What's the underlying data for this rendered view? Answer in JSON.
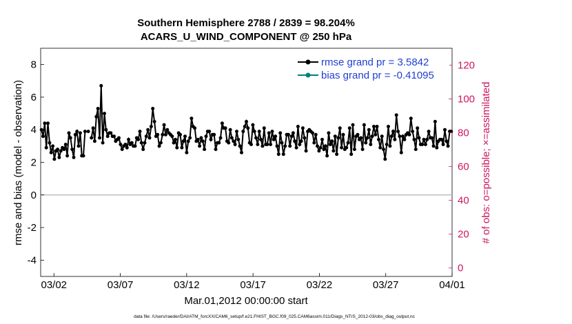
{
  "chart_data": {
    "type": "line",
    "title_line1": "Southern Hemisphere 2788 / 2839 = 98.204%",
    "title_line2": "ACARS_U_WIND_COMPONENT @ 250 hPa",
    "xlabel": "Mar.01,2012 00:00:00 start",
    "ylabel_left": "rmse and bias (model - observation)",
    "ylabel_right": "# of obs: o=possible; ×=assimilated",
    "footer": "data file: /Users/raeder/DAI/ATM_forcXX/CAM6_setup/f.e21.FHIST_BGC.f09_025.CAM6assim.011/Diags_NTrS_2012-03/obs_diag_output.nc",
    "x_tick_labels": [
      "03/02",
      "03/07",
      "03/12",
      "03/17",
      "03/22",
      "03/27",
      "04/01"
    ],
    "x_tick_positions": [
      1,
      6,
      11,
      16,
      21,
      26,
      31
    ],
    "xlim": [
      0,
      31
    ],
    "left_ylim": [
      -5,
      9
    ],
    "left_ticks": [
      "-4",
      "-2",
      "0",
      "2",
      "4",
      "6",
      "8"
    ],
    "right_ylim": [
      -5,
      130
    ],
    "right_ticks": [
      "0",
      "20",
      "40",
      "60",
      "80",
      "100",
      "120"
    ],
    "colors": {
      "rmse": "#000000",
      "bias": "#00807f",
      "obs": "#cc1561",
      "zero": "#bdbdbd",
      "legend_text": "#1f3fd0"
    },
    "legend": [
      {
        "name": "rmse",
        "label": "rmse grand pr = 3.5842"
      },
      {
        "name": "bias",
        "label": "bias grand pr = -0.41095"
      }
    ],
    "series": [
      {
        "name": "rmse",
        "values": [
          4.0,
          3.6,
          4.4,
          2.9,
          4.4,
          3.2,
          2.6,
          3.0,
          2.2,
          2.7,
          2.8,
          2.3,
          2.7,
          2.9,
          2.8,
          3.1,
          2.4,
          3.8,
          3.5,
          2.8,
          2.3,
          3.7,
          3.9,
          3.0,
          3.8,
          2.4,
          2.4,
          3.9,
          null,
          3.9,
          null,
          3.5,
          4.1,
          3.3,
          4.8,
          5.3,
          3.5,
          6.7,
          3.2,
          5.0,
          4.0,
          3.6,
          3.8,
          3.8,
          3.6,
          3.6,
          3.3,
          3.4,
          3.5,
          3.1,
          2.8,
          3.0,
          3.1,
          2.9,
          3.4,
          3.1,
          3.2,
          3.0,
          3.0,
          3.5,
          3.4,
          3.9,
          3.2,
          2.8,
          3.2,
          3.6,
          4.0,
          3.5,
          4.2,
          5.3,
          4.5,
          3.6,
          3.7,
          3.0,
          3.2,
          3.7,
          4.3,
          3.7,
          4.0,
          3.8,
          3.7,
          3.6,
          3.2,
          3.4,
          2.9,
          3.8,
          3.7,
          2.9,
          3.3,
          3.6,
          2.6,
          3.3,
          3.5,
          4.7,
          4.2,
          4.1,
          3.3,
          3.4,
          3.0,
          3.5,
          3.3,
          2.8,
          3.6,
          3.9,
          3.9,
          3.4,
          3.7,
          3.7,
          2.8,
          3.2,
          3.2,
          3.5,
          4.4,
          4.1,
          4.1,
          3.3,
          3.2,
          4.0,
          3.5,
          3.3,
          3.1,
          3.9,
          3.4,
          3.0,
          2.6,
          3.9,
          4.2,
          4.5,
          4.1,
          3.2,
          3.1,
          4.3,
          3.9,
          3.5,
          3.1,
          3.9,
          3.4,
          3.0,
          4.1,
          3.1,
          3.1,
          3.8,
          3.1,
          3.9,
          3.4,
          3.6,
          3.0,
          2.5,
          3.8,
          3.2,
          2.5,
          3.0,
          3.7,
          3.7,
          3.0,
          3.6,
          3.8,
          3.3,
          2.9,
          4.2,
          3.1,
          3.3,
          4.1,
          3.5,
          2.7,
          3.9,
          4.0,
          3.9,
          3.8,
          3.2,
          3.7,
          3.0,
          2.7,
          2.9,
          3.4,
          2.8,
          3.0,
          2.4,
          3.8,
          3.1,
          3.3,
          2.7,
          3.6,
          2.5,
          3.5,
          4.1,
          2.9,
          3.7,
          2.8,
          2.9,
          3.2,
          4.1,
          2.5,
          4.3,
          2.8,
          3.6,
          3.7,
          3.4,
          3.5,
          2.8,
          4.3,
          3.2,
          3.5,
          4.0,
          3.1,
          3.6,
          4.2,
          3.7,
          4.2,
          3.4,
          2.9,
          3.6,
          2.8,
          2.2,
          3.1,
          4.2,
          3.0,
          3.6,
          3.9,
          3.4,
          4.9,
          3.9,
          3.6,
          2.6,
          3.6,
          3.4,
          3.7,
          3.8,
          3.7,
          4.7,
          3.9,
          3.4,
          2.8,
          4.1,
          3.5,
          3.1,
          3.1,
          3.4,
          3.1,
          3.4,
          3.9,
          3.5,
          3.5,
          3.0,
          4.5,
          2.9,
          3.3,
          3.4,
          3.4,
          3.1,
          4.0,
          3.3,
          3.0,
          3.9,
          3.9
        ]
      }
    ]
  }
}
